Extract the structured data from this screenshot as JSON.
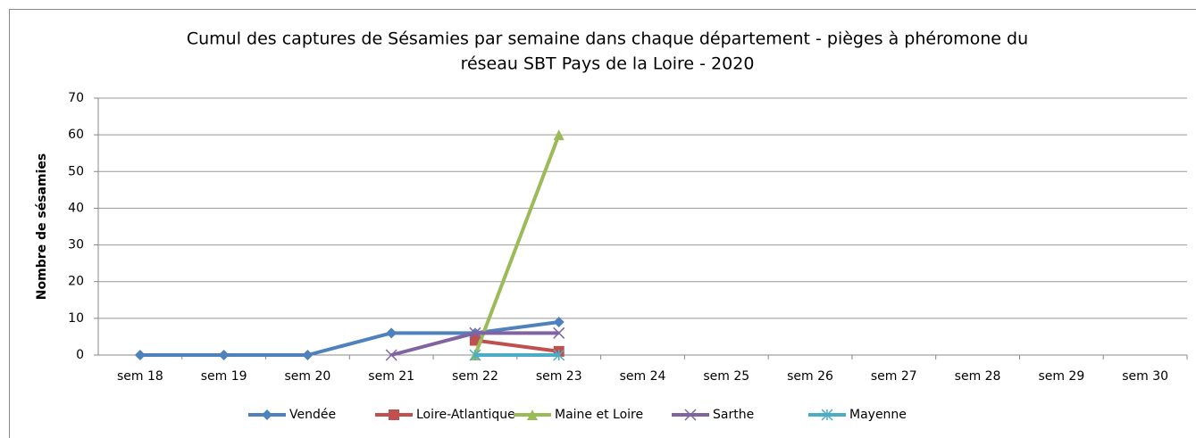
{
  "chart_data": {
    "type": "line",
    "title": [
      "Cumul des captures de Sésamies par semaine dans chaque département - pièges à phéromone du",
      "réseau SBT Pays de la Loire - 2020"
    ],
    "y_label": "Nombre de sésamies",
    "categories": [
      "sem 18",
      "sem 19",
      "sem 20",
      "sem 21",
      "sem 22",
      "sem 23",
      "sem 24",
      "sem 25",
      "sem 26",
      "sem 27",
      "sem 28",
      "sem 29",
      "sem 30"
    ],
    "series": [
      {
        "name": "Vendée",
        "color": "#4f81bd",
        "marker": "diamond",
        "values": [
          0,
          0,
          0,
          6,
          6,
          9,
          null,
          null,
          null,
          null,
          null,
          null,
          null
        ]
      },
      {
        "name": "Loire-Atlantique",
        "color": "#c0504d",
        "marker": "square",
        "values": [
          null,
          null,
          null,
          null,
          4,
          1,
          null,
          null,
          null,
          null,
          null,
          null,
          null
        ]
      },
      {
        "name": "Maine et Loire",
        "color": "#9bbb59",
        "marker": "triangle",
        "values": [
          null,
          null,
          null,
          null,
          0,
          60,
          null,
          null,
          null,
          null,
          null,
          null,
          null
        ]
      },
      {
        "name": "Sarthe",
        "color": "#8064a2",
        "marker": "x",
        "values": [
          null,
          null,
          null,
          0,
          6,
          6,
          null,
          null,
          null,
          null,
          null,
          null,
          null
        ]
      },
      {
        "name": "Mayenne",
        "color": "#4bacc6",
        "marker": "star",
        "values": [
          null,
          null,
          null,
          null,
          0,
          0,
          null,
          null,
          null,
          null,
          null,
          null,
          null
        ]
      }
    ],
    "ylim": [
      0,
      70
    ],
    "yticks": [
      0,
      10,
      20,
      30,
      40,
      50,
      60,
      70
    ],
    "grid": true,
    "legend": "bottom"
  }
}
